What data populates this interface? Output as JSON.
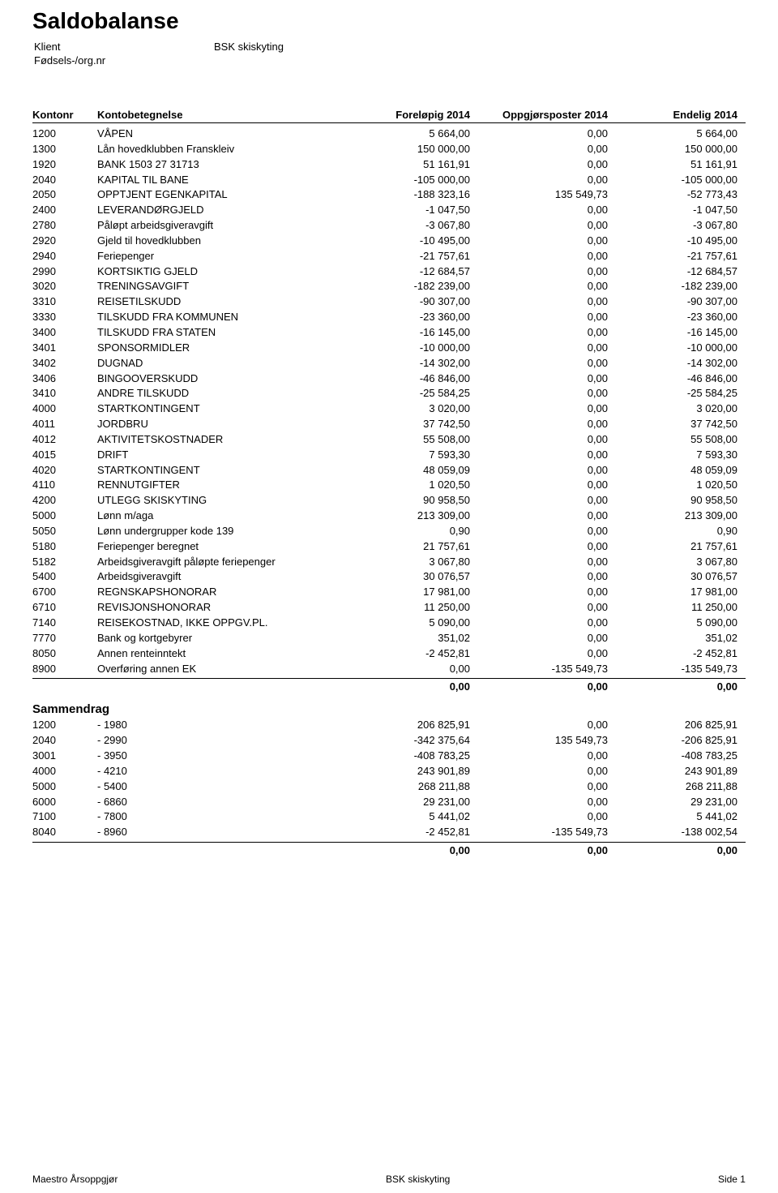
{
  "header": {
    "title": "Saldobalanse",
    "client_label": "Klient",
    "client_value": "BSK skiskyting",
    "orgnr_label": "Fødsels-/org.nr"
  },
  "columns": {
    "kontonr": "Kontonr",
    "betegnelse": "Kontobetegnelse",
    "forelopig": "Foreløpig 2014",
    "oppgjor": "Oppgjørsposter 2014",
    "endelig": "Endelig 2014"
  },
  "rows": [
    {
      "nr": "1200",
      "navn": "VÅPEN",
      "f": "5 664,00",
      "o": "0,00",
      "e": "5 664,00"
    },
    {
      "nr": "1300",
      "navn": "Lån hovedklubben Franskleiv",
      "f": "150 000,00",
      "o": "0,00",
      "e": "150 000,00"
    },
    {
      "nr": "1920",
      "navn": "BANK 1503 27 31713",
      "f": "51 161,91",
      "o": "0,00",
      "e": "51 161,91"
    },
    {
      "nr": "2040",
      "navn": "KAPITAL TIL BANE",
      "f": "-105 000,00",
      "o": "0,00",
      "e": "-105 000,00"
    },
    {
      "nr": "2050",
      "navn": "OPPTJENT EGENKAPITAL",
      "f": "-188 323,16",
      "o": "135 549,73",
      "e": "-52 773,43"
    },
    {
      "nr": "2400",
      "navn": "LEVERANDØRGJELD",
      "f": "-1 047,50",
      "o": "0,00",
      "e": "-1 047,50"
    },
    {
      "nr": "2780",
      "navn": "Påløpt arbeidsgiveravgift",
      "f": "-3 067,80",
      "o": "0,00",
      "e": "-3 067,80"
    },
    {
      "nr": "2920",
      "navn": "Gjeld til hovedklubben",
      "f": "-10 495,00",
      "o": "0,00",
      "e": "-10 495,00"
    },
    {
      "nr": "2940",
      "navn": "Feriepenger",
      "f": "-21 757,61",
      "o": "0,00",
      "e": "-21 757,61"
    },
    {
      "nr": "2990",
      "navn": "KORTSIKTIG GJELD",
      "f": "-12 684,57",
      "o": "0,00",
      "e": "-12 684,57"
    },
    {
      "nr": "3020",
      "navn": "TRENINGSAVGIFT",
      "f": "-182 239,00",
      "o": "0,00",
      "e": "-182 239,00"
    },
    {
      "nr": "3310",
      "navn": "REISETILSKUDD",
      "f": "-90 307,00",
      "o": "0,00",
      "e": "-90 307,00"
    },
    {
      "nr": "3330",
      "navn": "TILSKUDD FRA KOMMUNEN",
      "f": "-23 360,00",
      "o": "0,00",
      "e": "-23 360,00"
    },
    {
      "nr": "3400",
      "navn": "TILSKUDD FRA STATEN",
      "f": "-16 145,00",
      "o": "0,00",
      "e": "-16 145,00"
    },
    {
      "nr": "3401",
      "navn": "SPONSORMIDLER",
      "f": "-10 000,00",
      "o": "0,00",
      "e": "-10 000,00"
    },
    {
      "nr": "3402",
      "navn": "DUGNAD",
      "f": "-14 302,00",
      "o": "0,00",
      "e": "-14 302,00"
    },
    {
      "nr": "3406",
      "navn": "BINGOOVERSKUDD",
      "f": "-46 846,00",
      "o": "0,00",
      "e": "-46 846,00"
    },
    {
      "nr": "3410",
      "navn": "ANDRE TILSKUDD",
      "f": "-25 584,25",
      "o": "0,00",
      "e": "-25 584,25"
    },
    {
      "nr": "4000",
      "navn": "STARTKONTINGENT",
      "f": "3 020,00",
      "o": "0,00",
      "e": "3 020,00"
    },
    {
      "nr": "4011",
      "navn": "JORDBRU",
      "f": "37 742,50",
      "o": "0,00",
      "e": "37 742,50"
    },
    {
      "nr": "4012",
      "navn": "AKTIVITETSKOSTNADER",
      "f": "55 508,00",
      "o": "0,00",
      "e": "55 508,00"
    },
    {
      "nr": "4015",
      "navn": "DRIFT",
      "f": "7 593,30",
      "o": "0,00",
      "e": "7 593,30"
    },
    {
      "nr": "4020",
      "navn": "STARTKONTINGENT",
      "f": "48 059,09",
      "o": "0,00",
      "e": "48 059,09"
    },
    {
      "nr": "4110",
      "navn": "RENNUTGIFTER",
      "f": "1 020,50",
      "o": "0,00",
      "e": "1 020,50"
    },
    {
      "nr": "4200",
      "navn": "UTLEGG SKISKYTING",
      "f": "90 958,50",
      "o": "0,00",
      "e": "90 958,50"
    },
    {
      "nr": "5000",
      "navn": "Lønn m/aga",
      "f": "213 309,00",
      "o": "0,00",
      "e": "213 309,00"
    },
    {
      "nr": "5050",
      "navn": "Lønn undergrupper kode 139",
      "f": "0,90",
      "o": "0,00",
      "e": "0,90"
    },
    {
      "nr": "5180",
      "navn": "Feriepenger beregnet",
      "f": "21 757,61",
      "o": "0,00",
      "e": "21 757,61"
    },
    {
      "nr": "5182",
      "navn": "Arbeidsgiveravgift påløpte feriepenger",
      "f": "3 067,80",
      "o": "0,00",
      "e": "3 067,80"
    },
    {
      "nr": "5400",
      "navn": "Arbeidsgiveravgift",
      "f": "30 076,57",
      "o": "0,00",
      "e": "30 076,57"
    },
    {
      "nr": "6700",
      "navn": "REGNSKAPSHONORAR",
      "f": "17 981,00",
      "o": "0,00",
      "e": "17 981,00"
    },
    {
      "nr": "6710",
      "navn": "REVISJONSHONORAR",
      "f": "11 250,00",
      "o": "0,00",
      "e": "11 250,00"
    },
    {
      "nr": "7140",
      "navn": "REISEKOSTNAD, IKKE OPPGV.PL.",
      "f": "5 090,00",
      "o": "0,00",
      "e": "5 090,00"
    },
    {
      "nr": "7770",
      "navn": "Bank og kortgebyrer",
      "f": "351,02",
      "o": "0,00",
      "e": "351,02"
    },
    {
      "nr": "8050",
      "navn": "Annen renteinntekt",
      "f": "-2 452,81",
      "o": "0,00",
      "e": "-2 452,81"
    },
    {
      "nr": "8900",
      "navn": "Overføring annen EK",
      "f": "0,00",
      "o": "-135 549,73",
      "e": "-135 549,73"
    }
  ],
  "rows_total": {
    "f": "0,00",
    "o": "0,00",
    "e": "0,00"
  },
  "summary_heading": "Sammendrag",
  "summary": [
    {
      "nr": "1200",
      "range": "- 1980",
      "f": "206 825,91",
      "o": "0,00",
      "e": "206 825,91"
    },
    {
      "nr": "2040",
      "range": "- 2990",
      "f": "-342 375,64",
      "o": "135 549,73",
      "e": "-206 825,91"
    },
    {
      "nr": "3001",
      "range": "- 3950",
      "f": "-408 783,25",
      "o": "0,00",
      "e": "-408 783,25"
    },
    {
      "nr": "4000",
      "range": "- 4210",
      "f": "243 901,89",
      "o": "0,00",
      "e": "243 901,89"
    },
    {
      "nr": "5000",
      "range": "- 5400",
      "f": "268 211,88",
      "o": "0,00",
      "e": "268 211,88"
    },
    {
      "nr": "6000",
      "range": "- 6860",
      "f": "29 231,00",
      "o": "0,00",
      "e": "29 231,00"
    },
    {
      "nr": "7100",
      "range": "- 7800",
      "f": "5 441,02",
      "o": "0,00",
      "e": "5 441,02"
    },
    {
      "nr": "8040",
      "range": "- 8960",
      "f": "-2 452,81",
      "o": "-135 549,73",
      "e": "-138 002,54"
    }
  ],
  "summary_total": {
    "f": "0,00",
    "o": "0,00",
    "e": "0,00"
  },
  "footer": {
    "left": "Maestro Årsoppgjør",
    "center": "BSK skiskyting",
    "right": "Side 1"
  }
}
